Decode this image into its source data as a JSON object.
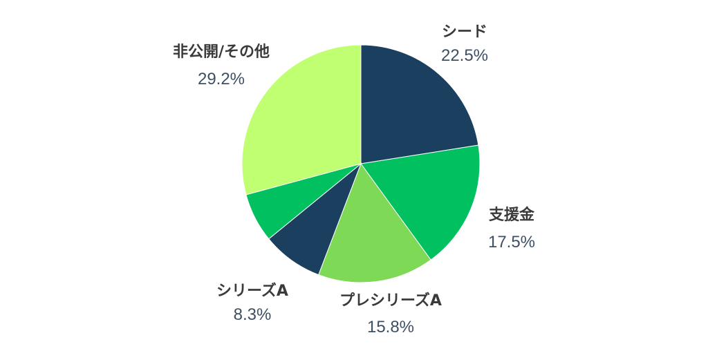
{
  "chart_data": {
    "type": "pie",
    "title": "",
    "slices": [
      {
        "label": "シード",
        "value": 22.5,
        "value_label": "22.5%",
        "color": "#1b3f5e"
      },
      {
        "label": "支援金",
        "value": 17.5,
        "value_label": "17.5%",
        "color": "#00c05f"
      },
      {
        "label": "プレシリーズA",
        "value": 15.8,
        "value_label": "15.8%",
        "color": "#7ed957"
      },
      {
        "label": "シリーズA",
        "value": 8.3,
        "value_label": "8.3%",
        "color": "#1b3f5e"
      },
      {
        "label": "",
        "value": 6.7,
        "value_label": "",
        "color": "#00c05f"
      },
      {
        "label": "非公開/その他",
        "value": 29.2,
        "value_label": "29.2%",
        "color": "#c1ff72"
      }
    ],
    "start_angle": "top",
    "direction": "clockwise",
    "legend": "none"
  }
}
